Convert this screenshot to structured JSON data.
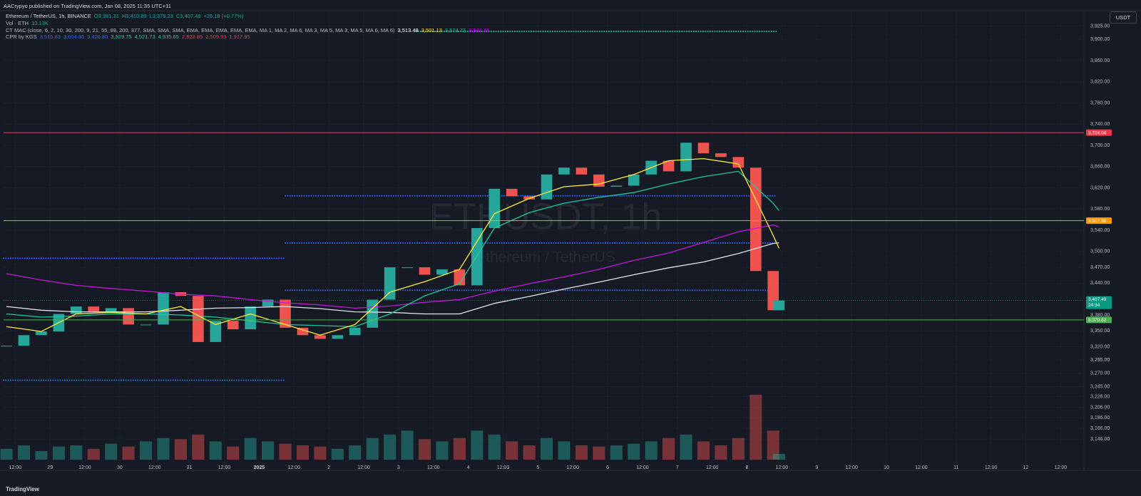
{
  "header": {
    "byline": "AACrypyo published on TradingView.com, Jan 08, 2025 11:35 UTC+11",
    "symbol": "Ethereum / TetherUS, 1h, BINANCE",
    "ohlc": [
      "O3,381.31",
      "H3,410.89",
      "L3,378.23",
      "C3,407.49",
      "+26.18 (+0.77%)"
    ],
    "volume_legend": "Vol · ETH",
    "volume_value": "10.13K",
    "ma_legend": "CT MAC (close, 6, 2, 10, 30, 200, 9, 21, 55, 89, 200, 377, SMA, SMA, SMA, EMA, EMA, EMA, EMA, EMA, MA 1, MA 2, MA 6, MA 3, MA 5, MA 3, MA 5, MA 6, MA 6)",
    "ma_values": [
      {
        "text": "3,513.49",
        "color": "#ffffff"
      },
      {
        "text": "3,501.13",
        "color": "#ffeb3b"
      },
      {
        "text": "3,574.73",
        "color": "#22c79a"
      },
      {
        "text": "3,541.49",
        "color": "#d500f9"
      }
    ],
    "cpr_legend": "CPR by KGS",
    "cpr_values": [
      {
        "text": "3,515.83",
        "color": "#2962ff"
      },
      {
        "text": "3,604.85",
        "color": "#2962ff"
      },
      {
        "text": "3,426.80",
        "color": "#2962ff"
      },
      {
        "text": "3,929.75",
        "color": "#22c79a"
      },
      {
        "text": "4,521.73",
        "color": "#22c79a"
      },
      {
        "text": "4,935.65",
        "color": "#22c79a"
      },
      {
        "text": "2,923.85",
        "color": "#f23645"
      },
      {
        "text": "2,509.93",
        "color": "#f23645"
      },
      {
        "text": "1,917.95",
        "color": "#f23645"
      }
    ]
  },
  "currency": "USDT",
  "watermark": {
    "symbol": "ETHUSDT, 1h",
    "name": "Ethereum / TetherUS"
  },
  "footer": "TradingView",
  "chart_data": [
    {
      "type": "candlestick",
      "x": [
        9,
        15,
        21,
        27,
        33,
        39,
        45,
        51,
        57,
        63,
        69,
        75,
        81,
        87,
        93,
        99,
        105,
        111,
        117,
        123,
        129,
        135,
        141,
        147,
        153,
        159,
        165,
        171,
        177,
        183,
        189,
        195,
        201,
        207,
        213,
        219,
        225,
        231,
        237,
        243,
        249,
        255,
        261,
        267,
        273,
        275
      ],
      "values": [
        3322,
        3342,
        3349,
        3382,
        3396,
        3386,
        3393,
        3362,
        3362,
        3423,
        3416,
        3329,
        3369,
        3353,
        3396,
        3409,
        3356,
        3342,
        3335,
        3342,
        3356,
        3409,
        3470,
        3470,
        3456,
        3466,
        3436,
        3544,
        3618,
        3604,
        3598,
        3645,
        3658,
        3645,
        3622,
        3624,
        3645,
        3671,
        3651,
        3705,
        3685,
        3678,
        3658,
        3463,
        3389,
        3407.49
      ],
      "volume": [
        19,
        25,
        15,
        23,
        25,
        19,
        28,
        23,
        32,
        38,
        36,
        44,
        32,
        23,
        38,
        32,
        28,
        25,
        23,
        19,
        25,
        38,
        44,
        51,
        36,
        32,
        38,
        51,
        44,
        32,
        25,
        38,
        32,
        25,
        23,
        25,
        28,
        32,
        38,
        44,
        32,
        25,
        38,
        114,
        51,
        10.13
      ],
      "volume_ylim": [
        0,
        200
      ],
      "up_color": "#26a69a",
      "down_color": "#ef5350",
      "xlim": [
        8,
        380
      ],
      "ylim": [
        3087,
        3954
      ],
      "xticks": [
        {
          "value": 12,
          "label": "12:00"
        },
        {
          "value": 24,
          "label": "29"
        },
        {
          "value": 36,
          "label": "12:00"
        },
        {
          "value": 48,
          "label": "30"
        },
        {
          "value": 60,
          "label": "12:00"
        },
        {
          "value": 72,
          "label": "31"
        },
        {
          "value": 84,
          "label": "12:00"
        },
        {
          "value": 96,
          "label": "2025"
        },
        {
          "value": 108,
          "label": "12:00"
        },
        {
          "value": 120,
          "label": "2"
        },
        {
          "value": 132,
          "label": "12:00"
        },
        {
          "value": 144,
          "label": "3"
        },
        {
          "value": 156,
          "label": "12:00"
        },
        {
          "value": 168,
          "label": "4"
        },
        {
          "value": 180,
          "label": "12:00"
        },
        {
          "value": 192,
          "label": "5"
        },
        {
          "value": 204,
          "label": "12:00"
        },
        {
          "value": 216,
          "label": "6"
        },
        {
          "value": 228,
          "label": "12:00"
        },
        {
          "value": 240,
          "label": "7"
        },
        {
          "value": 252,
          "label": "12:00"
        },
        {
          "value": 264,
          "label": "8"
        },
        {
          "value": 276,
          "label": "12:00"
        },
        {
          "value": 288,
          "label": "9"
        },
        {
          "value": 300,
          "label": "12:00"
        },
        {
          "value": 312,
          "label": "10"
        },
        {
          "value": 324,
          "label": "12:00"
        },
        {
          "value": 336,
          "label": "11"
        },
        {
          "value": 348,
          "label": "12:00"
        },
        {
          "value": 360,
          "label": "12"
        },
        {
          "value": 372,
          "label": "12:00"
        }
      ],
      "yticks": [
        {
          "value": 3925,
          "label": "3,925.00"
        },
        {
          "value": 3900,
          "label": "3,900.00"
        },
        {
          "value": 3860,
          "label": "3,860.00"
        },
        {
          "value": 3820,
          "label": "3,820.00"
        },
        {
          "value": 3780,
          "label": "3,780.00"
        },
        {
          "value": 3740,
          "label": "3,740.00"
        },
        {
          "value": 3700,
          "label": "3,700.00"
        },
        {
          "value": 3660,
          "label": "3,660.00"
        },
        {
          "value": 3620,
          "label": "3,620.00"
        },
        {
          "value": 3580,
          "label": "3,580.00"
        },
        {
          "value": 3540,
          "label": "3,540.00"
        },
        {
          "value": 3500,
          "label": "3,500.00"
        },
        {
          "value": 3470,
          "label": "3,470.00"
        },
        {
          "value": 3440,
          "label": "3,440.00"
        },
        {
          "value": 3380,
          "label": "3,380.00"
        },
        {
          "value": 3350,
          "label": "3,350.00"
        },
        {
          "value": 3320,
          "label": "3,320.00"
        },
        {
          "value": 3295,
          "label": "3,295.00"
        },
        {
          "value": 3270,
          "label": "3,270.00"
        },
        {
          "value": 3245,
          "label": "3,245.00"
        },
        {
          "value": 3226,
          "label": "3,226.00"
        },
        {
          "value": 3206,
          "label": "3,206.00"
        },
        {
          "value": 3186,
          "label": "3,186.00"
        },
        {
          "value": 3166,
          "label": "3,166.00"
        },
        {
          "value": 3146,
          "label": "3,146.00"
        }
      ],
      "grid": true,
      "levels": [
        {
          "value": 3724.04,
          "label": "3,724.04",
          "color": "#f23645"
        },
        {
          "value": 3557.96,
          "label": "3,557.96",
          "color": "#ff9800"
        },
        {
          "value": 3370.82,
          "label": "3,370.82",
          "color": "#4caf50"
        }
      ],
      "last_price": {
        "value": 3407.49,
        "label": "3,407.49",
        "countdown": "24:34",
        "color": "#089981"
      },
      "dotted_levels": [
        {
          "value": 3487,
          "from": 8,
          "to": 105,
          "color": "#2962ff"
        },
        {
          "value": 3257,
          "from": 8,
          "to": 105,
          "color": "#2962ff"
        },
        {
          "value": 3604.85,
          "from": 105,
          "to": 274,
          "color": "#2962ff"
        },
        {
          "value": 3515.83,
          "from": 105,
          "to": 274,
          "color": "#2962ff"
        },
        {
          "value": 3426.8,
          "from": 105,
          "to": 274,
          "color": "#2962ff"
        },
        {
          "value": 3915,
          "from": 150,
          "to": 274,
          "color": "#22c79a"
        }
      ]
    },
    {
      "type": "line",
      "x": [
        9,
        21,
        33,
        45,
        57,
        69,
        81,
        93,
        105,
        117,
        129,
        141,
        153,
        165,
        177,
        189,
        201,
        213,
        225,
        237,
        249,
        261,
        273,
        275
      ],
      "series": [
        {
          "color": "#e0e3eb",
          "values": [
            3396,
            3389,
            3386,
            3386,
            3386,
            3389,
            3393,
            3394,
            3396,
            3392,
            3386,
            3385,
            3382,
            3382,
            3402,
            3415,
            3429,
            3442,
            3456,
            3469,
            3480,
            3496,
            3515,
            3516
          ]
        },
        {
          "color": "#c218d8",
          "values": [
            3458,
            3446,
            3436,
            3430,
            3425,
            3419,
            3416,
            3409,
            3403,
            3399,
            3393,
            3397,
            3404,
            3409,
            3425,
            3439,
            3452,
            3466,
            3483,
            3497,
            3517,
            3537,
            3550,
            3546
          ]
        },
        {
          "color": "#22c79a",
          "values": [
            3382,
            3376,
            3378,
            3382,
            3382,
            3380,
            3376,
            3369,
            3362,
            3360,
            3358,
            3382,
            3416,
            3439,
            3544,
            3573,
            3591,
            3602,
            3611,
            3627,
            3641,
            3651,
            3591,
            3577
          ]
        },
        {
          "color": "#ffeb3b",
          "values": [
            3358,
            3349,
            3382,
            3385,
            3382,
            3396,
            3362,
            3382,
            3362,
            3342,
            3362,
            3423,
            3443,
            3466,
            3571,
            3600,
            3622,
            3627,
            3645,
            3671,
            3675,
            3665,
            3530,
            3506
          ]
        }
      ]
    }
  ]
}
